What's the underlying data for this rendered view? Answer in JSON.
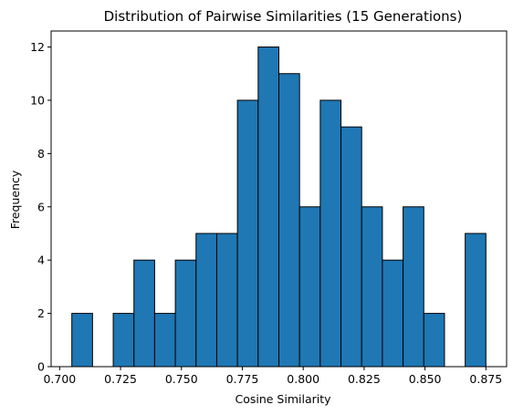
{
  "chart_data": {
    "type": "bar",
    "title": "Distribution of Pairwise Similarities (15 Generations)",
    "xlabel": "Cosine Similarity",
    "ylabel": "Frequency",
    "bin_edges": [
      0.705,
      0.7135,
      0.722,
      0.7305,
      0.739,
      0.7475,
      0.756,
      0.7645,
      0.773,
      0.7815,
      0.79,
      0.7985,
      0.807,
      0.8155,
      0.824,
      0.8325,
      0.841,
      0.8495,
      0.858,
      0.8665,
      0.875
    ],
    "values": [
      2,
      0,
      2,
      4,
      2,
      4,
      5,
      5,
      10,
      12,
      11,
      6,
      10,
      9,
      6,
      4,
      6,
      2,
      0,
      5
    ],
    "xlim": [
      0.6965,
      0.8835
    ],
    "ylim": [
      0,
      12.6
    ],
    "xticks": [
      "0.700",
      "0.725",
      "0.750",
      "0.775",
      "0.800",
      "0.825",
      "0.850",
      "0.875"
    ],
    "xtick_values": [
      0.7,
      0.725,
      0.75,
      0.775,
      0.8,
      0.825,
      0.85,
      0.875
    ],
    "yticks": [
      "0",
      "2",
      "4",
      "6",
      "8",
      "10",
      "12"
    ],
    "ytick_values": [
      0,
      2,
      4,
      6,
      8,
      10,
      12
    ],
    "bar_color": "#1f77b4",
    "edge_color": "#000000",
    "grid": false
  }
}
